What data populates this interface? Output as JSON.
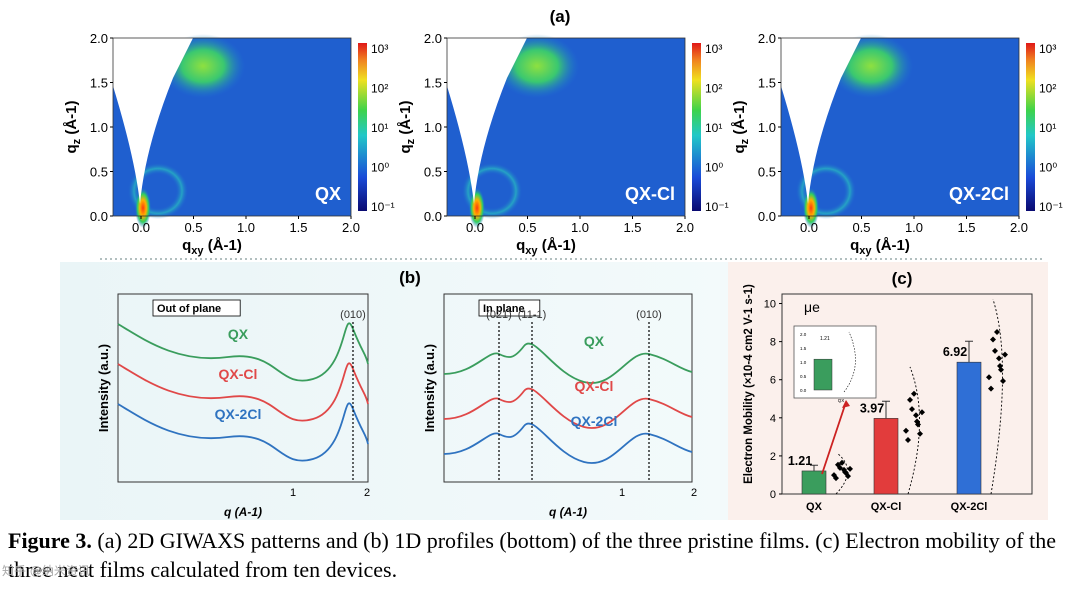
{
  "panel_a": {
    "label": "(a)",
    "colorbar_ticks": [
      "10³",
      "10²",
      "10¹",
      "10⁰",
      "10⁻¹"
    ],
    "x_ticks": [
      "0.0",
      "0.5",
      "1.0",
      "1.5",
      "2.0"
    ],
    "y_ticks": [
      "2.0",
      "1.5",
      "1.0",
      "0.5",
      "0.0"
    ],
    "xlabel": "qxy (Å-1)",
    "ylabel": "qz (Å-1)",
    "patterns": [
      {
        "name": "QX"
      },
      {
        "name": "QX-Cl"
      },
      {
        "name": "QX-2Cl"
      }
    ]
  },
  "panel_b": {
    "label": "(b)",
    "ylabel": "Intensity (a.u.)",
    "xlabel": "q (A-1)",
    "x_ticks": [
      "1",
      "2"
    ],
    "left": {
      "title": "Out of plane",
      "peak_labels": [
        "(010)"
      ],
      "series_labels": [
        "QX",
        "QX-Cl",
        "QX-2Cl"
      ]
    },
    "right": {
      "title": "In plane",
      "peak_labels": [
        "(021)",
        "(11-1)",
        "(010)"
      ],
      "series_labels": [
        "QX",
        "QX-Cl",
        "QX-2Cl"
      ]
    }
  },
  "panel_c": {
    "label": "(c)",
    "legend": "μe",
    "colors": {
      "QX": "#3a9d5d",
      "QX-Cl": "#e23c3c",
      "QX-2Cl": "#2f6fd6"
    }
  },
  "chart_data": {
    "type": "bar",
    "ylabel": "Electron Mobility (×10-4 cm2 V-1 s-1)",
    "categories": [
      "QX",
      "QX-Cl",
      "QX-2Cl"
    ],
    "values": [
      1.21,
      3.97,
      6.92
    ],
    "errors": [
      0.3,
      0.9,
      1.1
    ],
    "ylim": [
      0,
      10.5
    ],
    "y_ticks": [
      "0",
      "2",
      "4",
      "6",
      "8",
      "10"
    ],
    "value_labels": [
      "1.21",
      "3.97",
      "6.92"
    ],
    "inset": {
      "y_ticks": [
        "2.0",
        "1.5",
        "1.0",
        "0.5",
        "0.0"
      ],
      "value_label": "1.21",
      "category": "QX"
    }
  },
  "caption": {
    "bold": "Figure 3.",
    "text": " (a) 2D GIWAXS patterns and (b) 1D profiles (bottom) of the three pristine films. (c) Electron mobility of the three neat films calculated from ten devices."
  },
  "watermark": "知乎 @纳米资讯"
}
